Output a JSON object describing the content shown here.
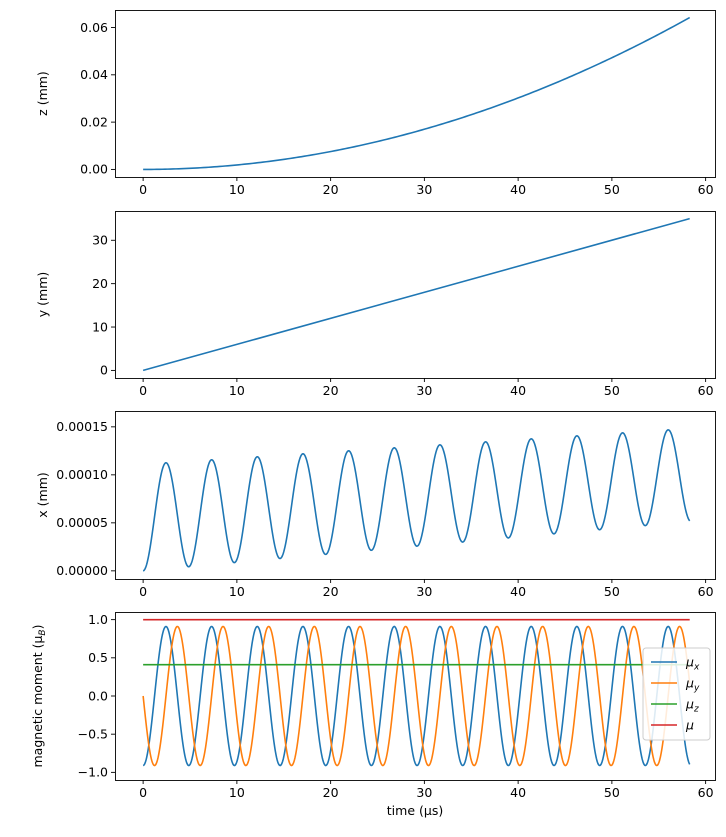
{
  "chart_data": [
    {
      "type": "line",
      "ylabel": "z (mm)",
      "xlabel": "",
      "xlim": [
        -3,
        61
      ],
      "ylim": [
        -0.0032,
        0.0674
      ],
      "xticks": [
        0,
        10,
        20,
        30,
        40,
        50,
        60
      ],
      "xtick_labels": [
        "0",
        "10",
        "20",
        "30",
        "40",
        "50",
        "60"
      ],
      "yticks": [
        0,
        0.02,
        0.04,
        0.06
      ],
      "ytick_labels": [
        "0.00",
        "0.02",
        "0.04",
        "0.06"
      ],
      "series": [
        {
          "name": "z",
          "color": "#1f77b4",
          "x": [
            0,
            5,
            10,
            15,
            20,
            25,
            30,
            35,
            40,
            45,
            50,
            55,
            58.3
          ],
          "y": [
            0,
            0.00047,
            0.00188,
            0.00423,
            0.00752,
            0.01175,
            0.01692,
            0.02303,
            0.03008,
            0.03807,
            0.047,
            0.05687,
            0.0642
          ]
        }
      ]
    },
    {
      "type": "line",
      "ylabel": "y (mm)",
      "xlabel": "",
      "xlim": [
        -3,
        61
      ],
      "ylim": [
        -1.75,
        36.75
      ],
      "xticks": [
        0,
        10,
        20,
        30,
        40,
        50,
        60
      ],
      "xtick_labels": [
        "0",
        "10",
        "20",
        "30",
        "40",
        "50",
        "60"
      ],
      "yticks": [
        0,
        10,
        20,
        30
      ],
      "ytick_labels": [
        "0",
        "10",
        "20",
        "30"
      ],
      "series": [
        {
          "name": "y",
          "color": "#1f77b4",
          "x": [
            0,
            58.3
          ],
          "y": [
            0,
            35
          ]
        }
      ]
    },
    {
      "type": "line",
      "ylabel": "x (mm)",
      "xlabel": "",
      "xlim": [
        -3,
        61
      ],
      "ylim": [
        -8.5e-06,
        0.0001665
      ],
      "xticks": [
        0,
        10,
        20,
        30,
        40,
        50,
        60
      ],
      "xtick_labels": [
        "0",
        "10",
        "20",
        "30",
        "40",
        "50",
        "60"
      ],
      "yticks": [
        0,
        5e-05,
        0.0001,
        0.00015
      ],
      "ytick_labels": [
        "0.00000",
        "0.00005",
        "0.00010",
        "0.00015"
      ],
      "series": [
        {
          "name": "x",
          "color": "#1f77b4",
          "function": "oscillation",
          "x_range": [
            0,
            58.3
          ],
          "period": 4.87,
          "amplitude_start": 5.55e-05,
          "amplitude_end": 4.85e-05,
          "drift_per_us": 8.8e-07
        }
      ]
    },
    {
      "type": "line",
      "ylabel": "magnetic moment (μ",
      "ylabel_sub": "B",
      "xlabel": "time (μs)",
      "xlim": [
        -3,
        61
      ],
      "ylim": [
        -1.1,
        1.1
      ],
      "xticks": [
        0,
        10,
        20,
        30,
        40,
        50,
        60
      ],
      "xtick_labels": [
        "0",
        "10",
        "20",
        "30",
        "40",
        "50",
        "60"
      ],
      "yticks": [
        -1.0,
        -0.5,
        0.0,
        0.5,
        1.0
      ],
      "ytick_labels": [
        "−1.0",
        "−0.5",
        "0.0",
        "0.5",
        "1.0"
      ],
      "legend_position": "right",
      "series": [
        {
          "name": "μ",
          "sub": "x",
          "color": "#1f77b4",
          "function": "cos",
          "amplitude": 0.91,
          "period": 4.87,
          "phase": 3.14159,
          "x_range": [
            0,
            58.3
          ]
        },
        {
          "name": "μ",
          "sub": "y",
          "color": "#ff7f0e",
          "function": "sin",
          "amplitude": 0.91,
          "period": 4.87,
          "phase": 3.14159,
          "x_range": [
            0,
            58.3
          ]
        },
        {
          "name": "μ",
          "sub": "z",
          "color": "#2ca02c",
          "function": "const",
          "value": 0.41,
          "x_range": [
            0,
            58.3
          ]
        },
        {
          "name": "μ",
          "sub": "",
          "color": "#d62728",
          "function": "const",
          "value": 1.0,
          "x_range": [
            0,
            58.3
          ]
        }
      ]
    }
  ]
}
